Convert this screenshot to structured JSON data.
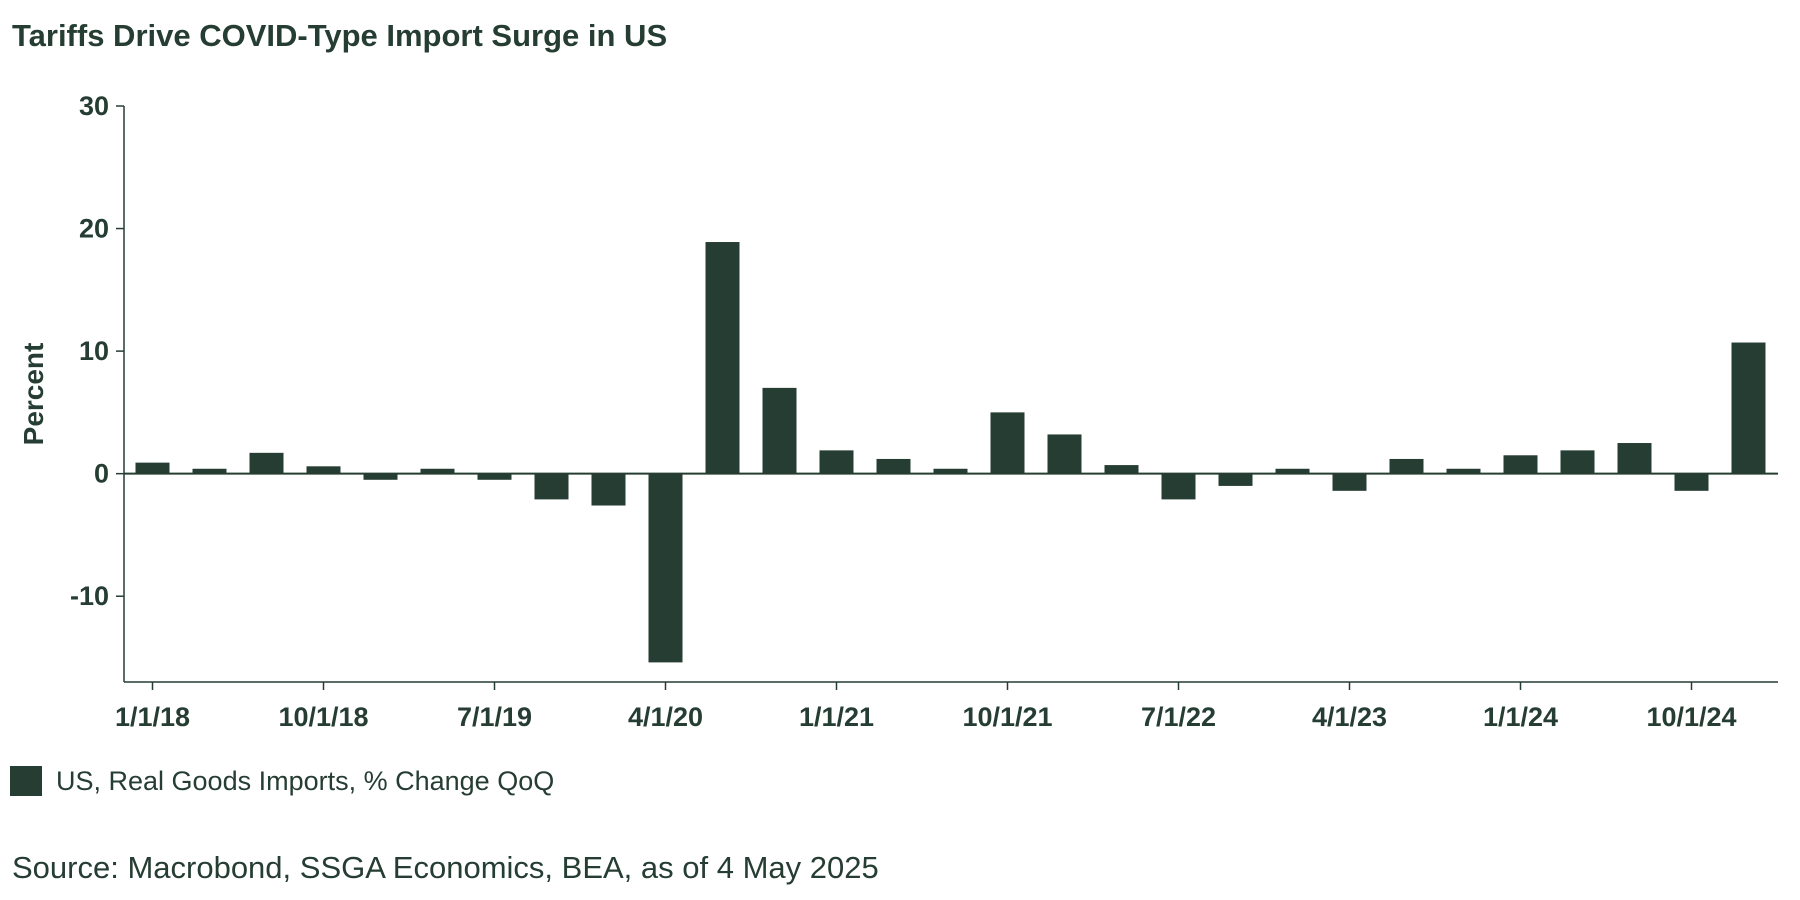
{
  "chart_data": {
    "type": "bar",
    "title": "Tariffs Drive COVID-Type Import Surge in US",
    "xlabel": "",
    "ylabel": "Percent",
    "ylim": [
      -17,
      30
    ],
    "yticks": [
      30,
      20,
      10,
      0,
      -10
    ],
    "ytick_labels": [
      "30",
      "20",
      "10",
      "0",
      "-10"
    ],
    "grid": false,
    "legend_position": "bottom-left",
    "xtick_labels": [
      "1/1/18",
      "10/1/18",
      "7/1/19",
      "4/1/20",
      "1/1/21",
      "10/1/21",
      "7/1/22",
      "4/1/23",
      "1/1/24",
      "10/1/24"
    ],
    "categories": [
      "1/1/18",
      "4/1/18",
      "7/1/18",
      "10/1/18",
      "1/1/19",
      "4/1/19",
      "7/1/19",
      "10/1/19",
      "1/1/20",
      "4/1/20",
      "7/1/20",
      "10/1/20",
      "1/1/21",
      "4/1/21",
      "7/1/21",
      "10/1/21",
      "1/1/22",
      "4/1/22",
      "7/1/22",
      "10/1/22",
      "1/1/23",
      "4/1/23",
      "7/1/23",
      "10/1/23",
      "1/1/24",
      "4/1/24",
      "7/1/24",
      "10/1/24",
      "1/1/25"
    ],
    "series": [
      {
        "name": "US, Real Goods Imports, % Change QoQ",
        "color": "#263d33",
        "values": [
          0.9,
          0.4,
          1.7,
          0.6,
          -0.5,
          0.4,
          -0.5,
          -2.1,
          -2.6,
          -15.4,
          18.9,
          7.0,
          1.9,
          1.2,
          0.4,
          5.0,
          3.2,
          0.7,
          -2.1,
          -1.0,
          0.4,
          -1.4,
          1.2,
          0.4,
          1.5,
          1.9,
          2.5,
          -1.4,
          10.7
        ]
      }
    ]
  },
  "source": "Source: Macrobond, SSGA Economics, BEA, as of 4 May 2025"
}
